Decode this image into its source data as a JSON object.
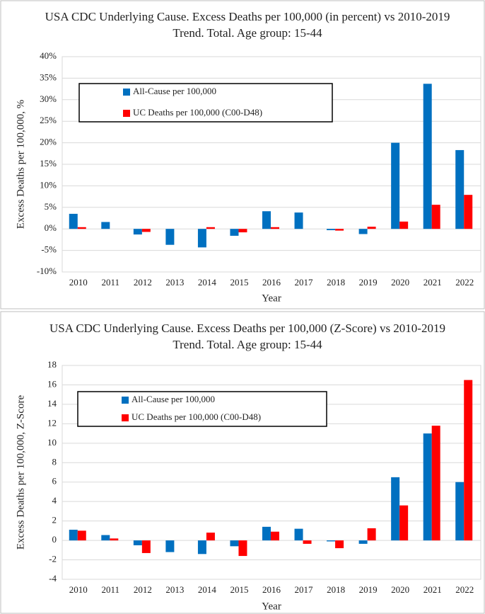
{
  "chart_data": [
    {
      "type": "bar",
      "title": "USA CDC Underlying Cause. Excess Deaths per 100,000 (in percent) vs 2010-2019 Trend. Total. Age group: 15-44",
      "x_label": "Year",
      "y_label": "Excess Deaths per 100,000, %",
      "categories": [
        "2010",
        "2011",
        "2012",
        "2013",
        "2014",
        "2015",
        "2016",
        "2017",
        "2018",
        "2019",
        "2020",
        "2021",
        "2022"
      ],
      "series": [
        {
          "name": "All-Cause per 100,000",
          "color": "#0070c0",
          "values": [
            3.5,
            1.6,
            -1.3,
            -3.7,
            -4.3,
            -1.6,
            4.1,
            3.8,
            -0.3,
            -1.2,
            20.0,
            33.7,
            18.3
          ]
        },
        {
          "name": "UC Deaths per 100,000 (C00-D48)",
          "color": "#ff0000",
          "values": [
            0.4,
            0,
            -0.7,
            0,
            0.4,
            -0.8,
            0.4,
            0,
            -0.4,
            0.5,
            1.7,
            5.6,
            7.9
          ]
        }
      ],
      "ylim": [
        -10,
        40
      ],
      "yticks": [
        {
          "value": -10,
          "label": "-10%"
        },
        {
          "value": -5,
          "label": "-5%"
        },
        {
          "value": 0,
          "label": "0%"
        },
        {
          "value": 5,
          "label": "5%"
        },
        {
          "value": 10,
          "label": "10%"
        },
        {
          "value": 15,
          "label": "15%"
        },
        {
          "value": 20,
          "label": "20%"
        },
        {
          "value": 25,
          "label": "25%"
        },
        {
          "value": 30,
          "label": "30%"
        },
        {
          "value": 35,
          "label": "35%"
        },
        {
          "value": 40,
          "label": "40%"
        }
      ],
      "grid": true,
      "legend": "upper left"
    },
    {
      "type": "bar",
      "title": "USA CDC Underlying Cause. Excess Deaths per 100,000 (Z-Score) vs 2010-2019 Trend. Total. Age group: 15-44",
      "x_label": "Year",
      "y_label": "Excess Deaths per 100,000, Z-Score",
      "categories": [
        "2010",
        "2011",
        "2012",
        "2013",
        "2014",
        "2015",
        "2016",
        "2017",
        "2018",
        "2019",
        "2020",
        "2021",
        "2022"
      ],
      "series": [
        {
          "name": "All-Cause per 100,000",
          "color": "#0070c0",
          "values": [
            1.1,
            0.55,
            -0.5,
            -1.2,
            -1.4,
            -0.6,
            1.4,
            1.2,
            -0.1,
            -0.35,
            6.5,
            11.0,
            6.0
          ]
        },
        {
          "name": "UC Deaths per 100,000 (C00-D48)",
          "color": "#ff0000",
          "values": [
            1.0,
            0.2,
            -1.3,
            0,
            0.8,
            -1.6,
            0.9,
            -0.35,
            -0.8,
            1.25,
            3.6,
            11.8,
            16.5
          ]
        }
      ],
      "ylim": [
        -4,
        18
      ],
      "yticks": [
        -4,
        -2,
        0,
        2,
        4,
        6,
        8,
        10,
        12,
        14,
        16,
        18
      ],
      "grid": true,
      "legend": "upper left"
    }
  ]
}
